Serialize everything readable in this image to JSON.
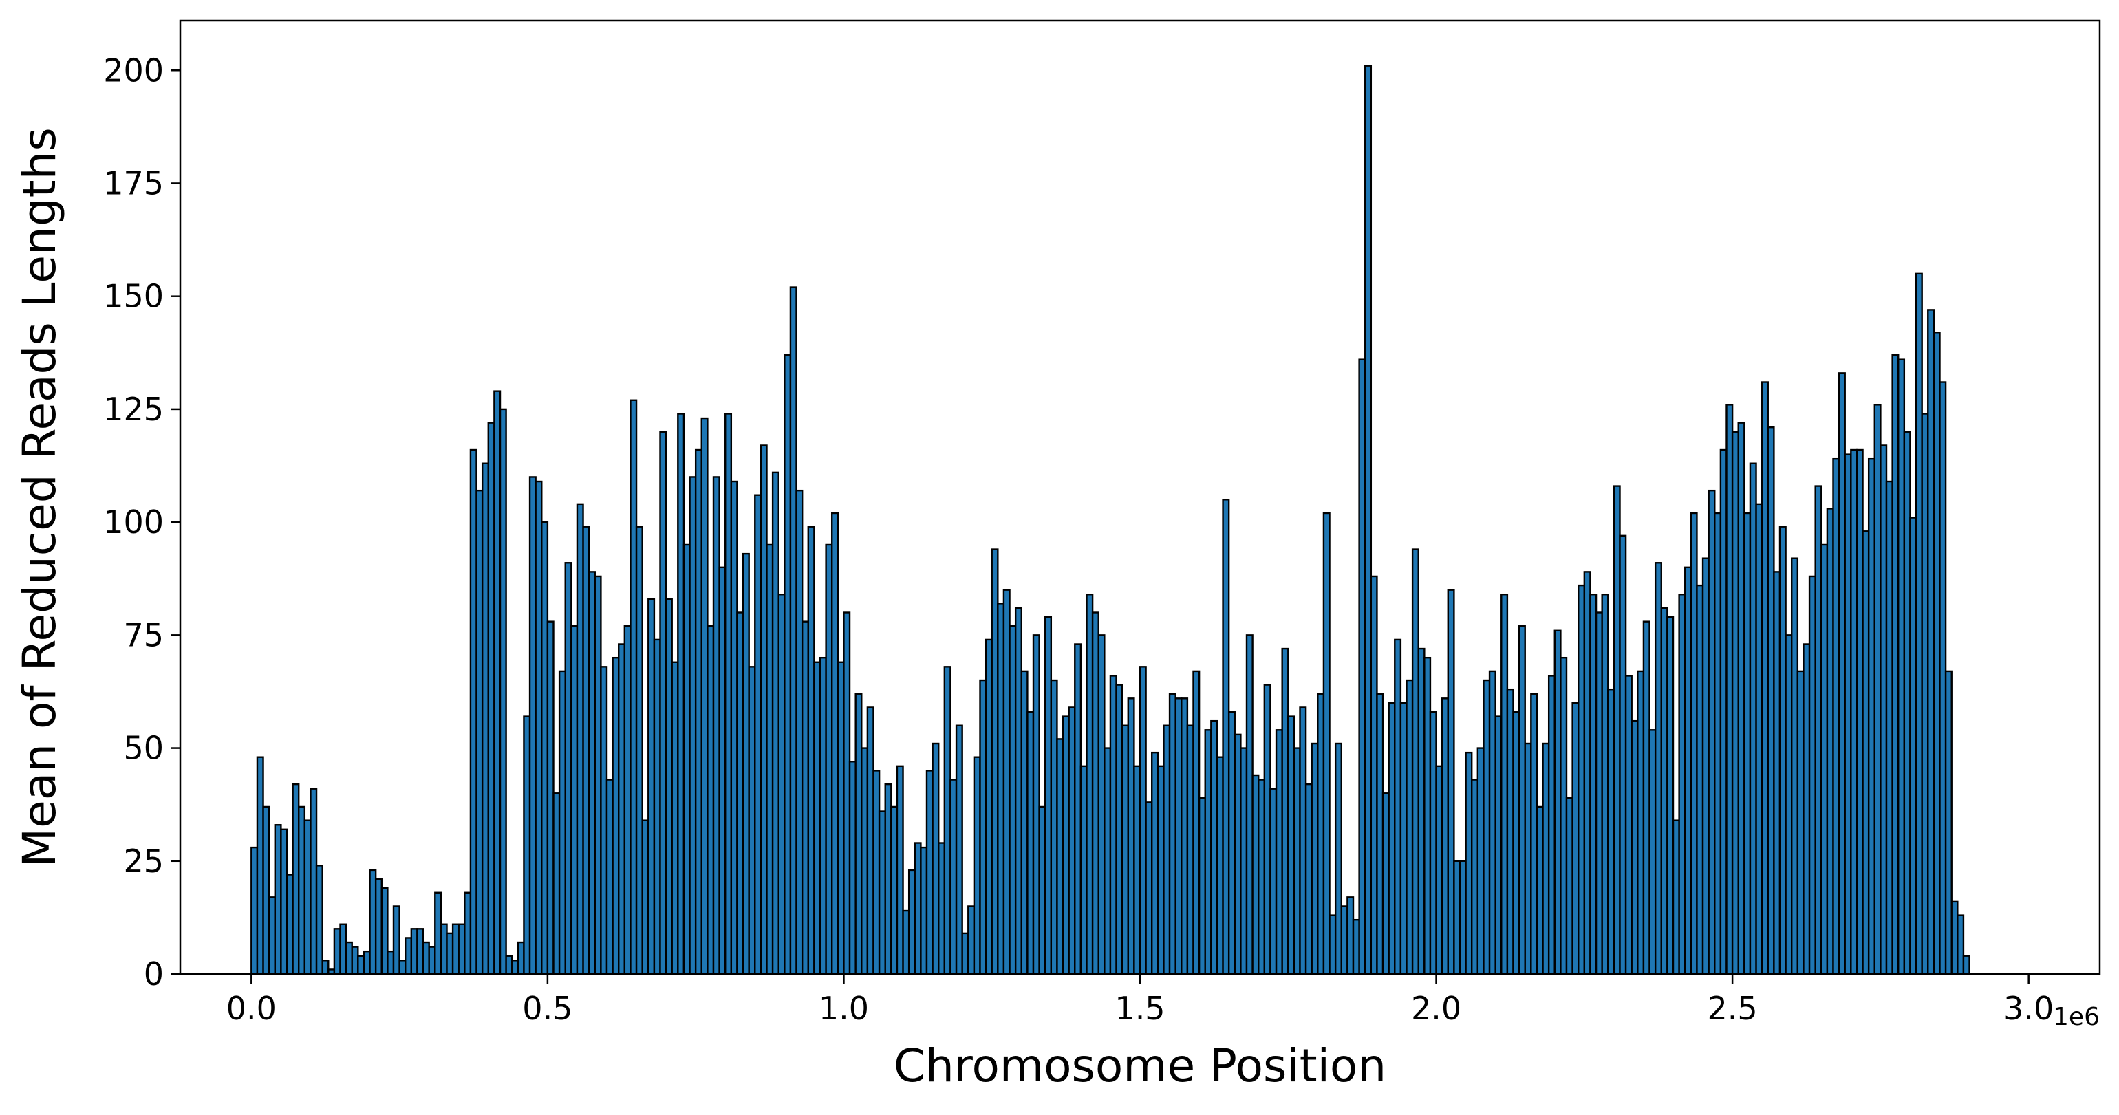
{
  "chart_data": {
    "type": "bar",
    "xlabel": "Chromosome Position",
    "ylabel": "Mean of Reduced Reads Lengths",
    "x_offset_label": "1e6",
    "xlim": [
      -0.12,
      3.12
    ],
    "ylim": [
      0,
      211
    ],
    "x_ticks": [
      0.0,
      0.5,
      1.0,
      1.5,
      2.0,
      2.5,
      3.0
    ],
    "x_tick_labels": [
      "0.0",
      "0.5",
      "1.0",
      "1.5",
      "2.0",
      "2.5",
      "3.0"
    ],
    "y_ticks": [
      0,
      25,
      50,
      75,
      100,
      125,
      150,
      175,
      200
    ],
    "y_tick_labels": [
      "0",
      "25",
      "50",
      "75",
      "100",
      "125",
      "150",
      "175",
      "200"
    ],
    "bin_width": 0.01,
    "bin_start": 0.0,
    "bar_color": "#1f77b4",
    "edge_color": "#000000",
    "values": [
      28,
      48,
      37,
      17,
      33,
      32,
      22,
      42,
      37,
      34,
      41,
      24,
      3,
      1,
      10,
      11,
      7,
      6,
      4,
      5,
      23,
      21,
      19,
      5,
      15,
      3,
      8,
      10,
      10,
      7,
      6,
      18,
      11,
      9,
      11,
      11,
      18,
      116,
      107,
      113,
      122,
      129,
      125,
      4,
      3,
      7,
      57,
      110,
      109,
      100,
      78,
      40,
      67,
      91,
      77,
      104,
      99,
      89,
      88,
      68,
      43,
      70,
      73,
      77,
      127,
      99,
      34,
      83,
      74,
      120,
      83,
      69,
      124,
      95,
      110,
      116,
      123,
      77,
      110,
      90,
      124,
      109,
      80,
      93,
      68,
      106,
      117,
      95,
      111,
      84,
      137,
      152,
      107,
      78,
      99,
      69,
      70,
      95,
      102,
      69,
      80,
      47,
      62,
      50,
      59,
      45,
      36,
      42,
      37,
      46,
      14,
      23,
      29,
      28,
      45,
      51,
      29,
      68,
      43,
      55,
      9,
      15,
      48,
      65,
      74,
      94,
      82,
      85,
      77,
      81,
      67,
      58,
      75,
      37,
      79,
      65,
      52,
      57,
      59,
      73,
      46,
      84,
      80,
      75,
      50,
      66,
      64,
      55,
      61,
      46,
      68,
      38,
      49,
      46,
      55,
      62,
      61,
      61,
      55,
      67,
      39,
      54,
      56,
      48,
      105,
      58,
      53,
      50,
      75,
      44,
      43,
      64,
      41,
      54,
      72,
      57,
      50,
      59,
      42,
      51,
      62,
      102,
      13,
      51,
      15,
      17,
      12,
      136,
      201,
      88,
      62,
      40,
      60,
      74,
      60,
      65,
      94,
      72,
      70,
      58,
      46,
      61,
      85,
      25,
      25,
      49,
      43,
      50,
      65,
      67,
      57,
      84,
      63,
      58,
      77,
      51,
      62,
      37,
      51,
      66,
      76,
      70,
      39,
      60,
      86,
      89,
      84,
      80,
      84,
      63,
      108,
      97,
      66,
      56,
      67,
      78,
      54,
      91,
      81,
      79,
      34,
      84,
      90,
      102,
      86,
      92,
      107,
      102,
      116,
      126,
      120,
      122,
      102,
      113,
      104,
      131,
      121,
      89,
      99,
      75,
      92,
      67,
      73,
      88,
      108,
      95,
      103,
      114,
      133,
      115,
      116,
      116,
      98,
      114,
      126,
      117,
      109,
      137,
      136,
      120,
      101,
      155,
      124,
      147,
      142,
      131,
      67,
      16,
      13,
      4
    ]
  }
}
